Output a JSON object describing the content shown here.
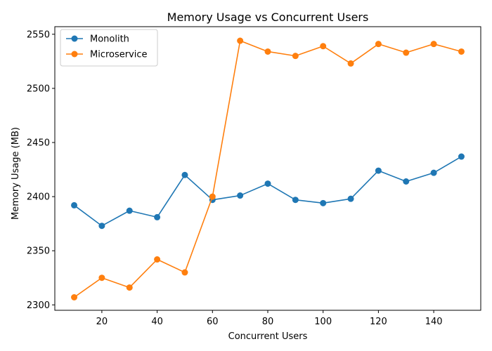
{
  "chart_data": {
    "type": "line",
    "title": "Memory Usage vs Concurrent Users",
    "xlabel": "Concurrent Users",
    "ylabel": "Memory Usage (MB)",
    "x": [
      10,
      20,
      30,
      40,
      50,
      60,
      70,
      80,
      90,
      100,
      110,
      120,
      130,
      140,
      150
    ],
    "xlim": [
      3,
      157
    ],
    "ylim": [
      2295,
      2557
    ],
    "xticks": [
      20,
      40,
      60,
      80,
      100,
      120,
      140
    ],
    "yticks": [
      2300,
      2350,
      2400,
      2450,
      2500,
      2550
    ],
    "grid": false,
    "legend_position": "upper-left",
    "series": [
      {
        "name": "Monolith",
        "color": "#1f77b4",
        "marker": "circle",
        "values": [
          2392,
          2373,
          2387,
          2381,
          2420,
          2397,
          2401,
          2412,
          2397,
          2394,
          2398,
          2424,
          2414,
          2422,
          2437
        ]
      },
      {
        "name": "Microservice",
        "color": "#ff7f0e",
        "marker": "circle",
        "values": [
          2307,
          2325,
          2316,
          2342,
          2330,
          2400,
          2544,
          2534,
          2530,
          2539,
          2523,
          2541,
          2533,
          2541,
          2534
        ]
      }
    ]
  }
}
